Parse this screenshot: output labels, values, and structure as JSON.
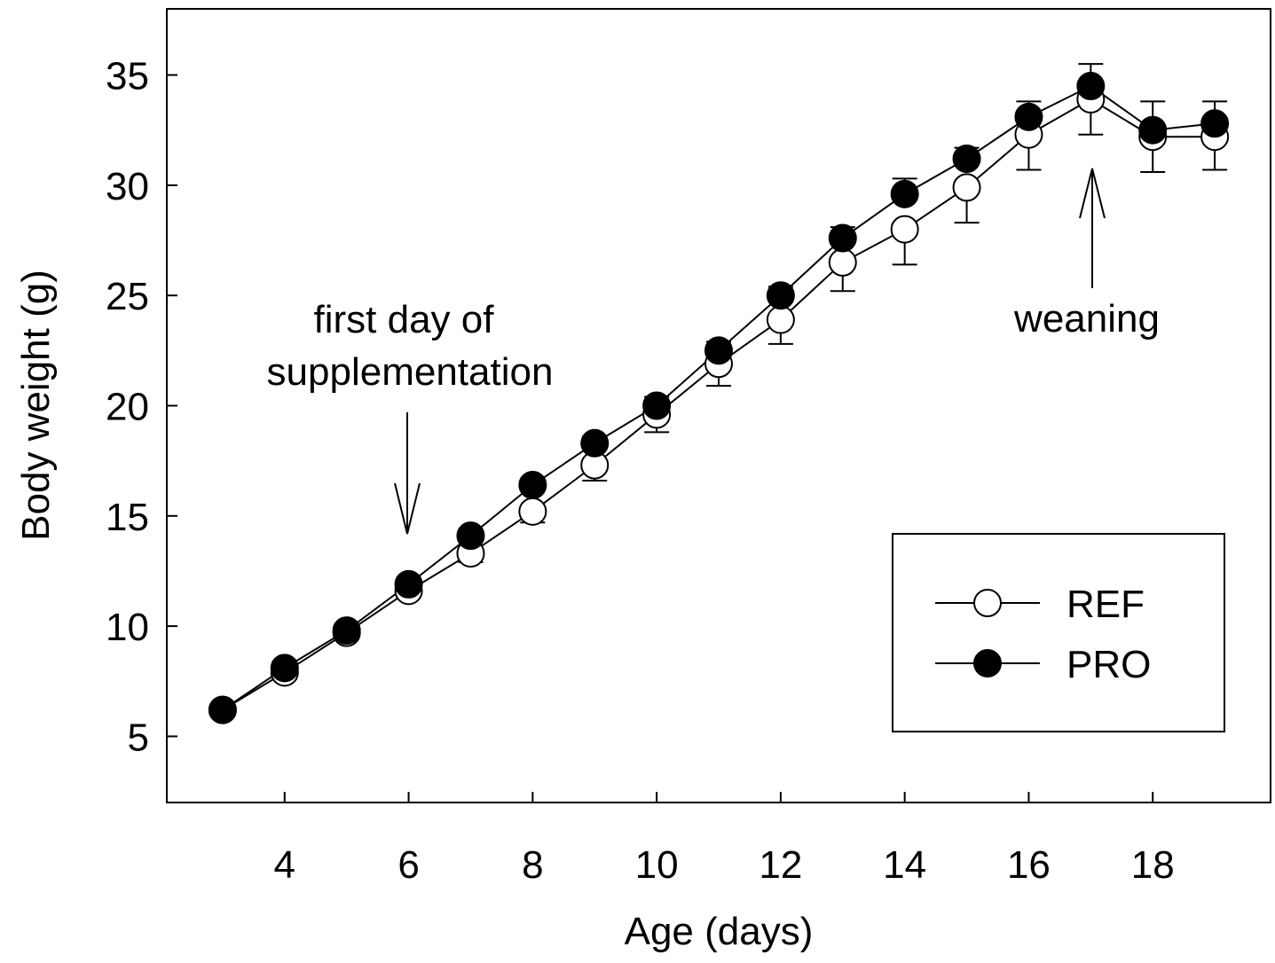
{
  "chart_data": {
    "type": "line",
    "xlabel": "Age (days)",
    "ylabel": "Body weight (g)",
    "x": [
      3,
      4,
      5,
      6,
      7,
      8,
      9,
      10,
      11,
      12,
      13,
      14,
      15,
      16,
      17,
      18,
      19
    ],
    "series": [
      {
        "name": "REF",
        "color": "#ffffff",
        "error_direction": "down",
        "values": [
          6.2,
          7.9,
          9.7,
          11.6,
          13.3,
          15.2,
          17.3,
          19.6,
          21.9,
          23.9,
          26.5,
          28.0,
          29.9,
          32.3,
          33.9,
          32.2,
          32.2
        ],
        "errors": [
          0.2,
          0.3,
          0.3,
          0.3,
          0.4,
          0.5,
          0.7,
          0.8,
          1.0,
          1.1,
          1.3,
          1.6,
          1.6,
          1.6,
          1.6,
          1.6,
          1.5
        ]
      },
      {
        "name": "PRO",
        "color": "#000000",
        "error_direction": "up",
        "values": [
          6.2,
          8.1,
          9.8,
          11.9,
          14.1,
          16.4,
          18.3,
          20.0,
          22.5,
          25.0,
          27.6,
          29.6,
          31.2,
          33.1,
          34.5,
          32.5,
          32.8
        ],
        "errors": [
          0.2,
          0.3,
          0.3,
          0.3,
          0.3,
          0.3,
          0.3,
          0.4,
          0.4,
          0.4,
          0.5,
          0.7,
          0.5,
          0.7,
          1.0,
          1.3,
          1.0
        ]
      }
    ],
    "xlim": [
      2.1,
      19.9
    ],
    "ylim": [
      2,
      38
    ],
    "xticks": [
      4,
      6,
      8,
      10,
      12,
      14,
      16,
      18
    ],
    "yticks": [
      5,
      10,
      15,
      20,
      25,
      30,
      35
    ],
    "legend_position": "lower right",
    "annotations": [
      {
        "lines": [
          "first day of",
          "supplementation"
        ]
      },
      {
        "lines": [
          "weaning"
        ]
      }
    ]
  }
}
